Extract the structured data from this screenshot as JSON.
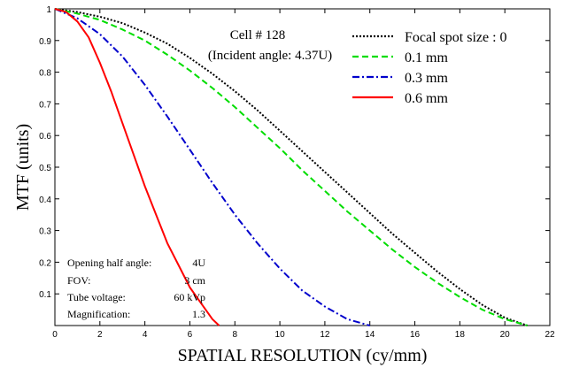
{
  "chart_data": {
    "type": "line",
    "title": "",
    "xlabel": "SPATIAL RESOLUTION (cy/mm)",
    "ylabel": "MTF (units)",
    "xlim": [
      0,
      22
    ],
    "ylim": [
      0,
      1
    ],
    "xticks": [
      "0",
      "2",
      "4",
      "6",
      "8",
      "10",
      "12",
      "14",
      "16",
      "18",
      "20",
      "22"
    ],
    "yticks": [
      "1",
      "0.9",
      "0.8",
      "0.7",
      "0.6",
      "0.5",
      "0.4",
      "0.3",
      "0.2",
      "0.1"
    ],
    "grid": false,
    "legend_position": "top-right",
    "annotations": {
      "cell_label": "Cell # 128",
      "incident_angle": "(Incident angle: 4.37U)",
      "params": [
        {
          "label": "Opening half angle:",
          "value": "4U"
        },
        {
          "label": "FOV:",
          "value": "3 cm"
        },
        {
          "label": "Tube voltage:",
          "value": "60 kVp"
        },
        {
          "label": "Magnification:",
          "value": "1.3"
        }
      ]
    },
    "series": [
      {
        "name": "Focal spot size : 0",
        "color": "#000000",
        "dash": "dotted",
        "x": [
          0,
          1,
          2,
          3,
          4,
          5,
          6,
          7,
          8,
          9,
          10,
          11,
          12,
          13,
          14,
          15,
          16,
          17,
          18,
          19,
          20,
          21
        ],
        "y": [
          1.0,
          0.99,
          0.975,
          0.955,
          0.925,
          0.89,
          0.845,
          0.795,
          0.74,
          0.68,
          0.615,
          0.55,
          0.485,
          0.42,
          0.355,
          0.29,
          0.23,
          0.17,
          0.115,
          0.065,
          0.025,
          0.0
        ]
      },
      {
        "name": "0.1 mm",
        "color": "#00dd00",
        "dash": "dashed",
        "x": [
          0,
          1,
          2,
          3,
          4,
          5,
          6,
          7,
          8,
          9,
          10,
          11,
          12,
          13,
          14,
          15,
          16,
          17,
          18,
          19,
          20,
          21
        ],
        "y": [
          1.0,
          0.985,
          0.965,
          0.935,
          0.9,
          0.855,
          0.805,
          0.75,
          0.69,
          0.625,
          0.56,
          0.49,
          0.425,
          0.36,
          0.3,
          0.24,
          0.185,
          0.135,
          0.09,
          0.05,
          0.02,
          0.0
        ]
      },
      {
        "name": "0.3 mm",
        "color": "#0000cc",
        "dash": "dashdot",
        "x": [
          0,
          1,
          2,
          3,
          4,
          5,
          6,
          7,
          8,
          9,
          10,
          11,
          12,
          13,
          14
        ],
        "y": [
          1.0,
          0.97,
          0.92,
          0.85,
          0.76,
          0.66,
          0.555,
          0.45,
          0.35,
          0.26,
          0.18,
          0.11,
          0.06,
          0.02,
          0.0
        ]
      },
      {
        "name": "0.6 mm",
        "color": "#ff0000",
        "dash": "solid",
        "x": [
          0,
          0.5,
          1,
          1.5,
          2,
          2.5,
          3,
          3.5,
          4,
          4.5,
          5,
          5.5,
          6,
          6.5,
          7,
          7.3
        ],
        "y": [
          1.0,
          0.99,
          0.96,
          0.91,
          0.83,
          0.74,
          0.64,
          0.54,
          0.44,
          0.35,
          0.26,
          0.19,
          0.12,
          0.07,
          0.02,
          0.0
        ]
      }
    ]
  }
}
